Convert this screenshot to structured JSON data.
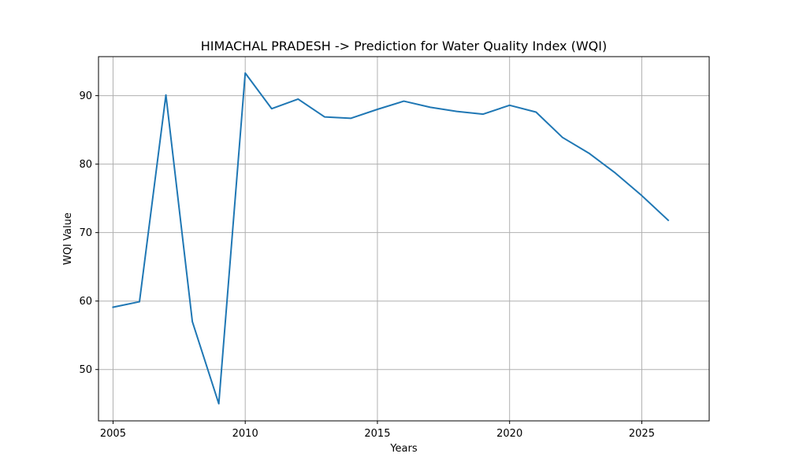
{
  "chart_data": {
    "type": "line",
    "title": "HIMACHAL PRADESH -> Prediction for Water Quality Index (WQI)",
    "xlabel": "Years",
    "ylabel": "WQI Value",
    "xlim": [
      2004.45,
      2027.55
    ],
    "ylim": [
      42.5,
      95.7
    ],
    "xticks": [
      2005,
      2010,
      2015,
      2020,
      2025
    ],
    "yticks": [
      50,
      60,
      70,
      80,
      90
    ],
    "grid": true,
    "series": [
      {
        "color": "#1f77b4",
        "x": [
          2005,
          2006,
          2007,
          2008,
          2009,
          2010,
          2011,
          2012,
          2013,
          2014,
          2015,
          2016,
          2017,
          2018,
          2019,
          2020,
          2021,
          2022,
          2023,
          2024,
          2025,
          2026
        ],
        "y": [
          59.1,
          59.9,
          90.1,
          57.0,
          45.0,
          93.3,
          88.1,
          89.5,
          86.9,
          86.7,
          88.0,
          89.2,
          88.3,
          87.7,
          87.3,
          88.6,
          87.6,
          83.9,
          81.6,
          78.7,
          75.4,
          71.8
        ]
      }
    ]
  }
}
